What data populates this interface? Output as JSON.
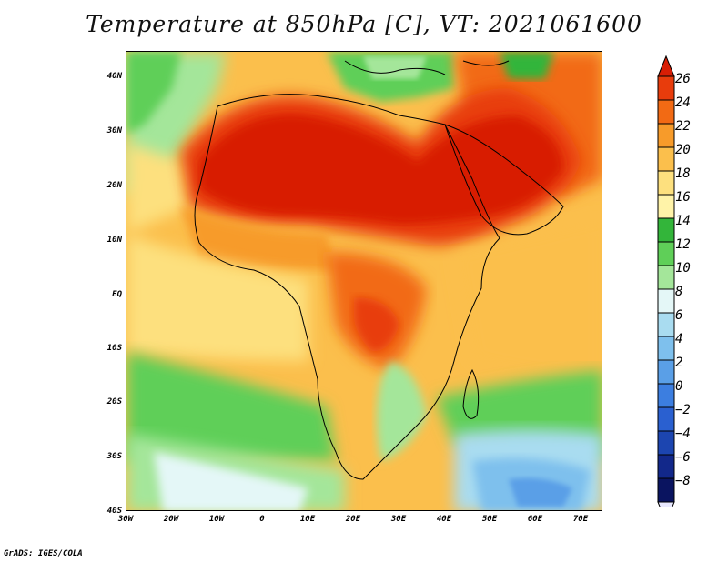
{
  "title": "Temperature at 850hPa [C], VT: 2021061600",
  "footer": "GrADS: IGES/COLA",
  "map": {
    "lat_labels": [
      "40N",
      "30N",
      "20N",
      "10N",
      "EQ",
      "10S",
      "20S",
      "30S",
      "40S"
    ],
    "lon_labels": [
      "30W",
      "20W",
      "10W",
      "0",
      "10E",
      "20E",
      "30E",
      "40E",
      "50E",
      "60E",
      "70E"
    ],
    "lat_range": [
      -40,
      45
    ],
    "lon_range": [
      -30,
      75
    ]
  },
  "colorbar": {
    "labels": [
      "26",
      "24",
      "22",
      "20",
      "18",
      "16",
      "14",
      "12",
      "10",
      "8",
      "6",
      "4",
      "2",
      "0",
      "−2",
      "−4",
      "−6",
      "−8"
    ],
    "colors_top_to_bottom": [
      "#d81e05",
      "#e83c0c",
      "#f26a14",
      "#f79b2a",
      "#fbbf4c",
      "#fde07e",
      "#fff3a8",
      "#33b53a",
      "#5fcf58",
      "#a4e69a",
      "#e4f7f7",
      "#a9dcf0",
      "#7ec0ed",
      "#5a9fe7",
      "#3c7ee0",
      "#2a60d0",
      "#1c45b0",
      "#12288a",
      "#0a1460",
      "#e8e8ff"
    ]
  }
}
